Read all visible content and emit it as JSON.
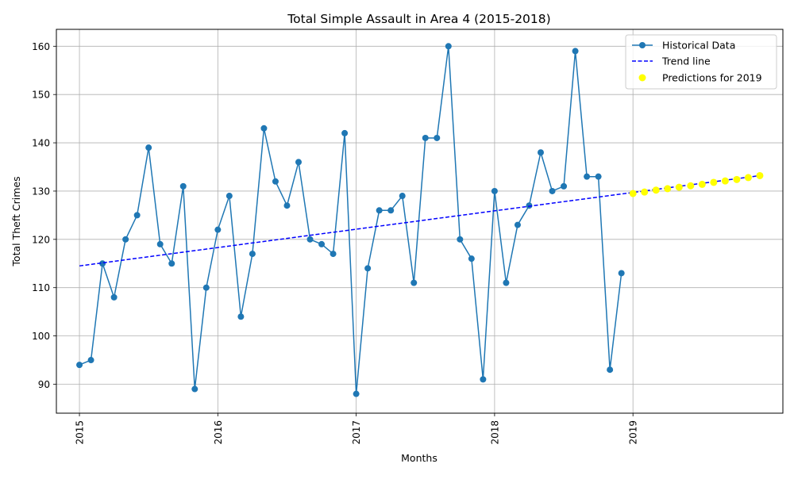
{
  "colors": {
    "historical": "#1f77b4",
    "trend": "#0000ff",
    "prediction": "#ffff00",
    "grid": "#b0b0b0",
    "axis": "#000000"
  },
  "chart_data": {
    "type": "line",
    "title": "Total Simple Assault in Area 4 (2015-2018)",
    "xlabel": "Months",
    "ylabel": "Total Theft Crimes",
    "x_ticks": [
      "2015",
      "2016",
      "2017",
      "2018",
      "2019"
    ],
    "y_ticks": [
      "90",
      "100",
      "110",
      "120",
      "130",
      "140",
      "150",
      "160"
    ],
    "ylim": [
      84,
      163.5
    ],
    "xlim": [
      "2014-11",
      "2020-02"
    ],
    "grid": true,
    "legend_position": "top-right",
    "series": [
      {
        "name": "Historical Data",
        "style": "line-with-markers",
        "x": [
          "2015-01",
          "2015-02",
          "2015-03",
          "2015-04",
          "2015-05",
          "2015-06",
          "2015-07",
          "2015-08",
          "2015-09",
          "2015-10",
          "2015-11",
          "2015-12",
          "2016-01",
          "2016-02",
          "2016-03",
          "2016-04",
          "2016-05",
          "2016-06",
          "2016-07",
          "2016-08",
          "2016-09",
          "2016-10",
          "2016-11",
          "2016-12",
          "2017-01",
          "2017-02",
          "2017-03",
          "2017-04",
          "2017-05",
          "2017-06",
          "2017-07",
          "2017-08",
          "2017-09",
          "2017-10",
          "2017-11",
          "2017-12",
          "2018-01",
          "2018-02",
          "2018-03",
          "2018-04",
          "2018-05",
          "2018-06",
          "2018-07",
          "2018-08",
          "2018-09",
          "2018-10",
          "2018-11",
          "2018-12"
        ],
        "values": [
          94,
          95,
          115,
          108,
          120,
          125,
          139,
          119,
          115,
          131,
          89,
          110,
          122,
          129,
          104,
          117,
          143,
          132,
          127,
          136,
          120,
          119,
          117,
          142,
          88,
          114,
          126,
          126,
          129,
          111,
          141,
          141,
          160,
          120,
          116,
          91,
          130,
          111,
          123,
          127,
          138,
          130,
          131,
          159,
          133,
          133,
          93,
          113
        ]
      },
      {
        "name": "Trend line",
        "style": "dashed",
        "x": [
          "2015-01",
          "2019-12"
        ],
        "values": [
          114.5,
          133.2
        ]
      },
      {
        "name": "Predictions for 2019",
        "style": "scatter",
        "x": [
          "2019-01",
          "2019-02",
          "2019-03",
          "2019-04",
          "2019-05",
          "2019-06",
          "2019-07",
          "2019-08",
          "2019-09",
          "2019-10",
          "2019-11",
          "2019-12"
        ],
        "values": [
          129.5,
          129.8,
          130.2,
          130.5,
          130.8,
          131.1,
          131.4,
          131.8,
          132.1,
          132.4,
          132.8,
          133.2
        ]
      }
    ]
  }
}
